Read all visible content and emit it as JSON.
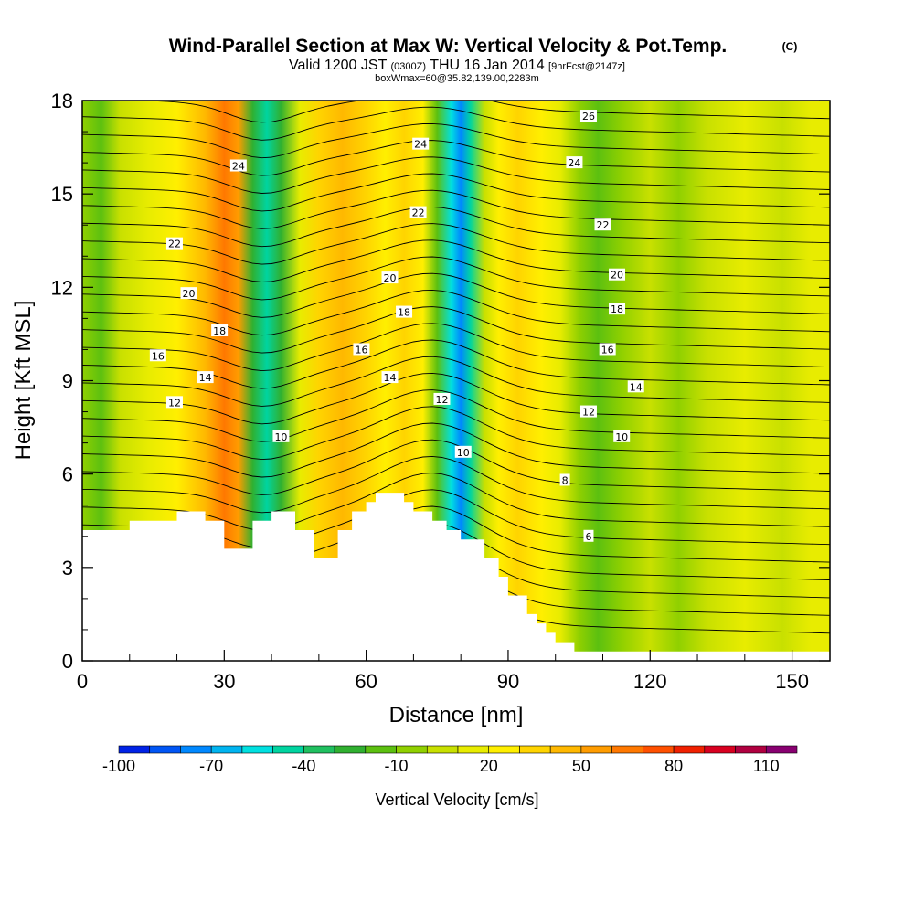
{
  "header": {
    "title": "Wind-Parallel Section at Max W: Vertical Velocity & Pot.Temp.",
    "copyright": "(C)",
    "valid_prefix": "Valid 1200 JST",
    "valid_utc": "(0300Z)",
    "valid_date": "THU 16 Jan 2014",
    "forecast": "[9hrFcst@2147z]",
    "box_info": "boxWmax=60@35.82,139.00,2283m"
  },
  "chart_data": {
    "type": "contour-section",
    "xlabel": "Distance [nm]",
    "ylabel": "Height [Kft MSL]",
    "xlim": [
      0,
      158
    ],
    "ylim": [
      0,
      18
    ],
    "x_ticks": [
      0,
      30,
      60,
      90,
      120,
      150
    ],
    "y_ticks": [
      0,
      3,
      6,
      9,
      12,
      15,
      18
    ],
    "terrain": [
      [
        0,
        4.2
      ],
      [
        10,
        4.2
      ],
      [
        10,
        4.5
      ],
      [
        20,
        4.5
      ],
      [
        20,
        4.8
      ],
      [
        26,
        4.8
      ],
      [
        26,
        4.5
      ],
      [
        30,
        4.5
      ],
      [
        30,
        3.6
      ],
      [
        36,
        3.6
      ],
      [
        36,
        4.5
      ],
      [
        40,
        4.5
      ],
      [
        40,
        4.8
      ],
      [
        45,
        4.8
      ],
      [
        45,
        4.2
      ],
      [
        49,
        4.2
      ],
      [
        49,
        3.3
      ],
      [
        54,
        3.3
      ],
      [
        54,
        4.2
      ],
      [
        57,
        4.2
      ],
      [
        57,
        4.8
      ],
      [
        60,
        4.8
      ],
      [
        60,
        5.1
      ],
      [
        62,
        5.1
      ],
      [
        62,
        5.4
      ],
      [
        68,
        5.4
      ],
      [
        68,
        5.1
      ],
      [
        70,
        5.1
      ],
      [
        70,
        4.8
      ],
      [
        74,
        4.8
      ],
      [
        74,
        4.5
      ],
      [
        77,
        4.5
      ],
      [
        77,
        4.2
      ],
      [
        80,
        4.2
      ],
      [
        80,
        3.9
      ],
      [
        85,
        3.9
      ],
      [
        85,
        3.3
      ],
      [
        88,
        3.3
      ],
      [
        88,
        2.7
      ],
      [
        90,
        2.7
      ],
      [
        90,
        2.1
      ],
      [
        94,
        2.1
      ],
      [
        94,
        1.5
      ],
      [
        96,
        1.5
      ],
      [
        96,
        1.2
      ],
      [
        98,
        1.2
      ],
      [
        98,
        0.9
      ],
      [
        100,
        0.9
      ],
      [
        100,
        0.6
      ],
      [
        104,
        0.6
      ],
      [
        104,
        0.3
      ],
      [
        158,
        0.3
      ]
    ],
    "velocity_bands": [
      {
        "x": 0,
        "w": -10
      },
      {
        "x": 4,
        "w": -20
      },
      {
        "x": 8,
        "w": 0
      },
      {
        "x": 14,
        "w": 10
      },
      {
        "x": 20,
        "w": 20
      },
      {
        "x": 26,
        "w": 40
      },
      {
        "x": 30,
        "w": 60
      },
      {
        "x": 33,
        "w": 50
      },
      {
        "x": 36,
        "w": -30
      },
      {
        "x": 39,
        "w": -50
      },
      {
        "x": 42,
        "w": -30
      },
      {
        "x": 46,
        "w": 10
      },
      {
        "x": 50,
        "w": 30
      },
      {
        "x": 55,
        "w": 40
      },
      {
        "x": 60,
        "w": 30
      },
      {
        "x": 64,
        "w": 20
      },
      {
        "x": 68,
        "w": 30
      },
      {
        "x": 72,
        "w": 20
      },
      {
        "x": 75,
        "w": -20
      },
      {
        "x": 78,
        "w": -60
      },
      {
        "x": 80,
        "w": -80
      },
      {
        "x": 82,
        "w": -50
      },
      {
        "x": 85,
        "w": 0
      },
      {
        "x": 88,
        "w": 20
      },
      {
        "x": 92,
        "w": 30
      },
      {
        "x": 97,
        "w": 20
      },
      {
        "x": 101,
        "w": 10
      },
      {
        "x": 105,
        "w": -10
      },
      {
        "x": 109,
        "w": -20
      },
      {
        "x": 114,
        "w": -10
      },
      {
        "x": 120,
        "w": 0
      },
      {
        "x": 126,
        "w": -10
      },
      {
        "x": 132,
        "w": 0
      },
      {
        "x": 140,
        "w": 10
      },
      {
        "x": 148,
        "w": 0
      },
      {
        "x": 154,
        "w": 10
      }
    ],
    "contour_labels": [
      {
        "text": "24",
        "x": 33,
        "y": 15.9
      },
      {
        "text": "22",
        "x": 19.5,
        "y": 13.4
      },
      {
        "text": "20",
        "x": 22.5,
        "y": 11.8
      },
      {
        "text": "18",
        "x": 29,
        "y": 10.6
      },
      {
        "text": "16",
        "x": 16,
        "y": 9.8
      },
      {
        "text": "14",
        "x": 26,
        "y": 9.1
      },
      {
        "text": "12",
        "x": 19.5,
        "y": 8.3
      },
      {
        "text": "10",
        "x": 42,
        "y": 7.2
      },
      {
        "text": "24",
        "x": 71.5,
        "y": 16.6
      },
      {
        "text": "22",
        "x": 71,
        "y": 14.4
      },
      {
        "text": "20",
        "x": 65,
        "y": 12.3
      },
      {
        "text": "18",
        "x": 68,
        "y": 11.2
      },
      {
        "text": "16",
        "x": 59,
        "y": 10.0
      },
      {
        "text": "14",
        "x": 65,
        "y": 9.1
      },
      {
        "text": "12",
        "x": 76,
        "y": 8.4
      },
      {
        "text": "10",
        "x": 80.5,
        "y": 6.7
      },
      {
        "text": "26",
        "x": 107,
        "y": 17.5
      },
      {
        "text": "24",
        "x": 104,
        "y": 16.0
      },
      {
        "text": "22",
        "x": 110,
        "y": 14.0
      },
      {
        "text": "20",
        "x": 113,
        "y": 12.4
      },
      {
        "text": "18",
        "x": 113,
        "y": 11.3
      },
      {
        "text": "16",
        "x": 111,
        "y": 10.0
      },
      {
        "text": "14",
        "x": 117,
        "y": 8.8
      },
      {
        "text": "12",
        "x": 107,
        "y": 8.0
      },
      {
        "text": "10",
        "x": 114,
        "y": 7.2
      },
      {
        "text": "8",
        "x": 102,
        "y": 5.8
      },
      {
        "text": "6",
        "x": 107,
        "y": 4.0
      }
    ],
    "colorbar": {
      "label": "Vertical Velocity [cm/s]",
      "levels": [
        -100,
        -90,
        -80,
        -70,
        -60,
        -50,
        -40,
        -30,
        -20,
        -10,
        0,
        10,
        20,
        30,
        40,
        50,
        60,
        70,
        80,
        90,
        100,
        110,
        120
      ],
      "colors": [
        "#0022e6",
        "#0055f5",
        "#0088ff",
        "#00b4f0",
        "#00e0e0",
        "#00d4a0",
        "#20c060",
        "#30b030",
        "#5cc010",
        "#90d000",
        "#c8e000",
        "#e8ec00",
        "#ffef00",
        "#ffd400",
        "#ffb800",
        "#ff9c00",
        "#ff7800",
        "#ff5000",
        "#f02000",
        "#d80020",
        "#b00040",
        "#880070"
      ],
      "tick_labels": [
        "-100",
        "-70",
        "-40",
        "-10",
        "20",
        "50",
        "80",
        "110"
      ]
    }
  }
}
